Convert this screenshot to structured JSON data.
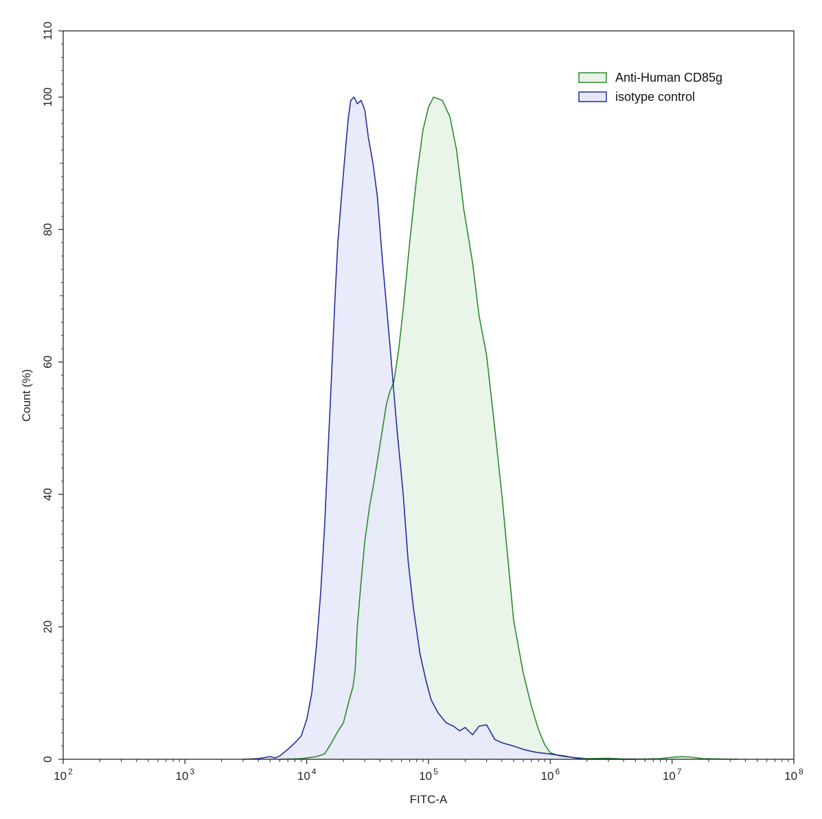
{
  "chart_data": {
    "type": "area",
    "xlabel": "FITC-A",
    "ylabel": "Count  (%)",
    "x_scale": "log",
    "xlim": [
      100,
      100000000
    ],
    "ylim": [
      0,
      110
    ],
    "x_ticks": [
      {
        "base": "10",
        "exp": "2",
        "value": 100
      },
      {
        "base": "10",
        "exp": "3",
        "value": 1000
      },
      {
        "base": "10",
        "exp": "4",
        "value": 10000
      },
      {
        "base": "10",
        "exp": "5",
        "value": 100000
      },
      {
        "base": "10",
        "exp": "6",
        "value": 1000000
      },
      {
        "base": "10",
        "exp": "7",
        "value": 10000000
      },
      {
        "base": "10",
        "exp": "8",
        "value": 100000000
      }
    ],
    "y_ticks": [
      "0",
      "20",
      "40",
      "60",
      "80",
      "100",
      "110"
    ],
    "grid": false,
    "legend_position": "top-right",
    "series": [
      {
        "name": "Anti-Human CD85g",
        "stroke": "#2a8a2a",
        "fill": "#e6f3e6",
        "points": [
          [
            6000,
            0
          ],
          [
            9000,
            0.1
          ],
          [
            12000,
            0.4
          ],
          [
            14000,
            0.8
          ],
          [
            16000,
            2.5
          ],
          [
            18000,
            4.2
          ],
          [
            20000,
            5.5
          ],
          [
            22000,
            8.5
          ],
          [
            24000,
            11
          ],
          [
            25000,
            13.5
          ],
          [
            26000,
            20
          ],
          [
            28000,
            27
          ],
          [
            30000,
            33
          ],
          [
            33000,
            38.5
          ],
          [
            35000,
            41
          ],
          [
            38000,
            45
          ],
          [
            42000,
            50
          ],
          [
            45000,
            53.5
          ],
          [
            48000,
            55.5
          ],
          [
            52000,
            57
          ],
          [
            57000,
            62
          ],
          [
            62000,
            68
          ],
          [
            70000,
            78
          ],
          [
            80000,
            88
          ],
          [
            90000,
            95
          ],
          [
            100000,
            98.5
          ],
          [
            110000,
            100
          ],
          [
            130000,
            99.5
          ],
          [
            150000,
            97
          ],
          [
            170000,
            92
          ],
          [
            195000,
            83
          ],
          [
            230000,
            75
          ],
          [
            260000,
            67
          ],
          [
            300000,
            61
          ],
          [
            350000,
            50
          ],
          [
            400000,
            40
          ],
          [
            450000,
            30
          ],
          [
            500000,
            21
          ],
          [
            600000,
            13
          ],
          [
            700000,
            8
          ],
          [
            800000,
            4.5
          ],
          [
            900000,
            2.2
          ],
          [
            1000000,
            1
          ],
          [
            1200000,
            0.5
          ],
          [
            1500000,
            0.3
          ],
          [
            2000000,
            0.1
          ],
          [
            3000000,
            0.15
          ],
          [
            4000000,
            0.05
          ],
          [
            6000000,
            0.05
          ],
          [
            8000000,
            0.1
          ],
          [
            10000000,
            0.3
          ],
          [
            12000000,
            0.4
          ],
          [
            14000000,
            0.35
          ],
          [
            18000000,
            0.1
          ],
          [
            25000000,
            0.05
          ],
          [
            35000000,
            0
          ]
        ]
      },
      {
        "name": "isotype control",
        "stroke": "#1f2f9a",
        "fill": "#e6e8f9",
        "points": [
          [
            3000,
            0
          ],
          [
            4000,
            0.1
          ],
          [
            5000,
            0.4
          ],
          [
            5500,
            0.2
          ],
          [
            6000,
            0.5
          ],
          [
            7000,
            1.5
          ],
          [
            8000,
            2.5
          ],
          [
            9000,
            3.5
          ],
          [
            10000,
            6
          ],
          [
            11000,
            10
          ],
          [
            12000,
            17
          ],
          [
            13000,
            25
          ],
          [
            14000,
            35
          ],
          [
            15000,
            47
          ],
          [
            16000,
            58
          ],
          [
            17000,
            69
          ],
          [
            18000,
            78
          ],
          [
            19500,
            86
          ],
          [
            21000,
            93
          ],
          [
            22000,
            97
          ],
          [
            23000,
            99.5
          ],
          [
            24500,
            100
          ],
          [
            26000,
            99
          ],
          [
            28000,
            99.5
          ],
          [
            30000,
            98
          ],
          [
            32000,
            94
          ],
          [
            35000,
            90
          ],
          [
            38000,
            85
          ],
          [
            42000,
            75
          ],
          [
            48000,
            63
          ],
          [
            55000,
            50
          ],
          [
            62000,
            40
          ],
          [
            68000,
            30
          ],
          [
            75000,
            23
          ],
          [
            85000,
            16
          ],
          [
            95000,
            12
          ],
          [
            105000,
            9
          ],
          [
            120000,
            7
          ],
          [
            140000,
            5.5
          ],
          [
            160000,
            5
          ],
          [
            180000,
            4.3
          ],
          [
            200000,
            4.8
          ],
          [
            230000,
            3.7
          ],
          [
            260000,
            5
          ],
          [
            300000,
            5.2
          ],
          [
            350000,
            3
          ],
          [
            400000,
            2.5
          ],
          [
            500000,
            2
          ],
          [
            600000,
            1.5
          ],
          [
            700000,
            1.2
          ],
          [
            800000,
            1
          ],
          [
            1000000,
            0.8
          ],
          [
            1300000,
            0.5
          ],
          [
            1600000,
            0.2
          ],
          [
            2000000,
            0
          ],
          [
            5000000,
            0
          ]
        ]
      }
    ]
  }
}
